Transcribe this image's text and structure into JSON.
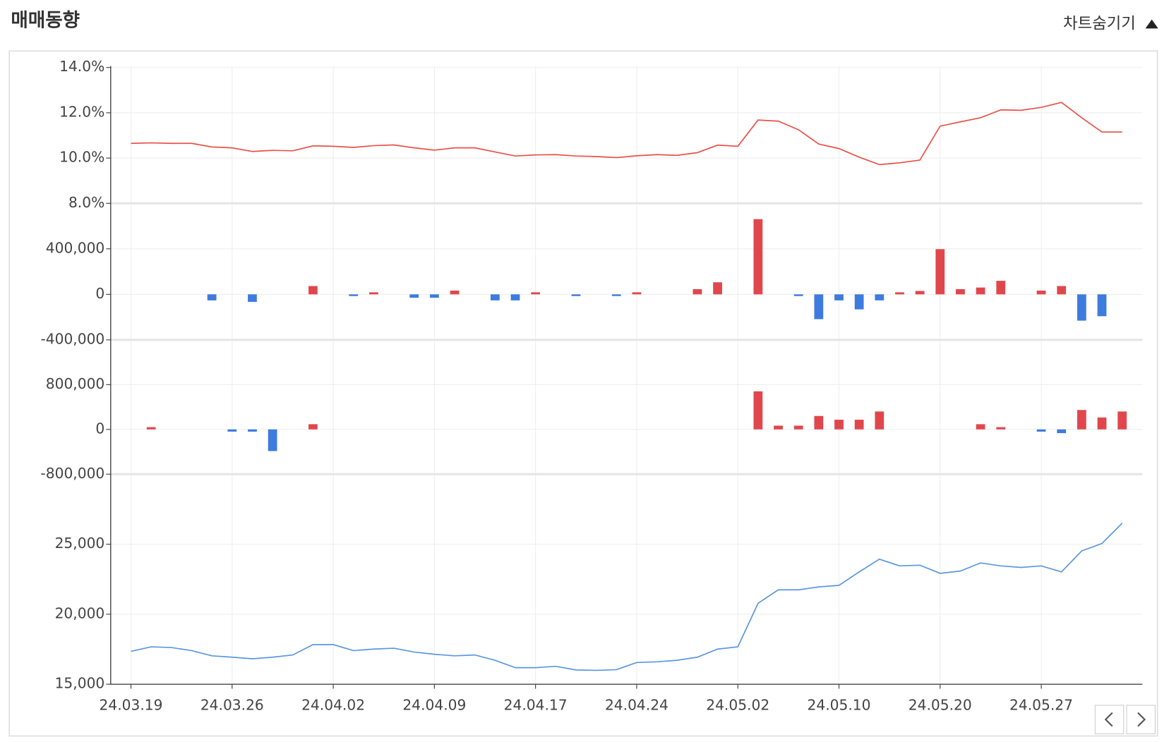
{
  "header": {
    "title": "매매동향",
    "toggle": "차트숨기기"
  },
  "chart_data": [
    {
      "type": "line",
      "color": "#e8524a",
      "ylim": [
        8,
        14
      ],
      "yticks": [
        {
          "value": 8,
          "label": "8.0%"
        },
        {
          "value": 10,
          "label": "10.0%"
        },
        {
          "value": 12,
          "label": "12.0%"
        },
        {
          "value": 14,
          "label": "14.0%"
        }
      ],
      "grid": true,
      "values": [
        10.65,
        10.67,
        10.65,
        10.65,
        10.49,
        10.45,
        10.29,
        10.34,
        10.32,
        10.54,
        10.52,
        10.47,
        10.55,
        10.58,
        10.45,
        10.35,
        10.45,
        10.45,
        10.27,
        10.09,
        10.14,
        10.15,
        10.09,
        10.07,
        10.02,
        10.1,
        10.15,
        10.12,
        10.24,
        10.57,
        10.52,
        11.68,
        11.63,
        11.25,
        10.62,
        10.42,
        10.04,
        9.71,
        9.79,
        9.91,
        11.41,
        11.6,
        11.78,
        12.13,
        12.11,
        12.24,
        12.46,
        11.78,
        11.15,
        11.15
      ]
    },
    {
      "type": "bar",
      "color": "#e0474c",
      "negative_color": "#3e7bde",
      "ylim": [
        -400000,
        800000
      ],
      "yticks": [
        {
          "value": -400000,
          "label": "-400,000"
        },
        0,
        {
          "value": 400000,
          "label": "400,000"
        }
      ],
      "grid": true,
      "values": [
        0,
        0,
        0,
        0,
        -53000,
        0,
        -66000,
        0,
        0,
        73000,
        0,
        -15000,
        18000,
        0,
        -30000,
        -30000,
        33000,
        0,
        -53000,
        -53000,
        18000,
        0,
        -15000,
        0,
        -15000,
        18000,
        0,
        0,
        46000,
        106000,
        0,
        661000,
        0,
        -15000,
        -218000,
        -53000,
        -132000,
        -53000,
        18000,
        30000,
        397000,
        46000,
        60000,
        119000,
        0,
        33000,
        73000,
        -231000,
        -192000,
        0
      ]
    },
    {
      "type": "bar",
      "color": "#e0474c",
      "negative_color": "#3e7bde",
      "ylim": [
        -800000,
        1600000
      ],
      "yticks": [
        {
          "value": -800000,
          "label": "-800,000"
        },
        0,
        {
          "value": 800000,
          "label": "800,000"
        }
      ],
      "grid": true,
      "values": [
        0,
        40000,
        0,
        0,
        0,
        -40000,
        -40000,
        -387000,
        0,
        93000,
        0,
        0,
        0,
        0,
        0,
        0,
        0,
        0,
        0,
        0,
        0,
        0,
        0,
        0,
        0,
        0,
        0,
        0,
        0,
        0,
        0,
        680000,
        67000,
        67000,
        240000,
        173000,
        173000,
        320000,
        0,
        0,
        0,
        0,
        93000,
        40000,
        0,
        -40000,
        -67000,
        347000,
        213000,
        320000
      ]
    },
    {
      "type": "line",
      "color": "#5b97e0",
      "ylim": [
        15000,
        30000
      ],
      "yticks": [
        {
          "value": 15000,
          "label": "15,000"
        },
        {
          "value": 20000,
          "label": "20,000"
        },
        {
          "value": 25000,
          "label": "25,000"
        }
      ],
      "grid": true,
      "categories": [
        "24.03.19",
        null,
        null,
        null,
        null,
        "24.03.26",
        null,
        null,
        null,
        null,
        "24.04.02",
        null,
        null,
        null,
        null,
        "24.04.09",
        null,
        null,
        null,
        null,
        "24.04.17",
        null,
        null,
        null,
        null,
        "24.04.24",
        null,
        null,
        null,
        null,
        "24.05.02",
        null,
        null,
        null,
        null,
        "24.05.10",
        null,
        null,
        null,
        null,
        "24.05.20",
        null,
        null,
        null,
        null,
        "24.05.27",
        null,
        null,
        null,
        null
      ],
      "values": [
        17350,
        17670,
        17620,
        17400,
        17030,
        16930,
        16820,
        16930,
        17090,
        17830,
        17830,
        17400,
        17510,
        17570,
        17300,
        17140,
        17030,
        17090,
        16710,
        16180,
        16180,
        16280,
        16020,
        15990,
        16040,
        16550,
        16600,
        16710,
        16930,
        17510,
        17670,
        20780,
        21740,
        21740,
        21950,
        22060,
        23020,
        23930,
        23450,
        23500,
        22920,
        23080,
        23660,
        23450,
        23340,
        23450,
        23020,
        24520,
        25050,
        26500
      ]
    }
  ]
}
